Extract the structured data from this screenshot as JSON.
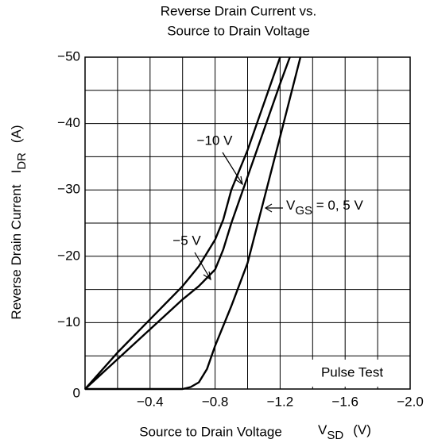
{
  "chart_data": {
    "type": "line",
    "title": [
      "Reverse Drain Current vs.",
      "Source to Drain Voltage"
    ],
    "xlabel": [
      "Source to Drain Voltage",
      "V",
      "SD",
      "(V)"
    ],
    "ylabel": [
      "Reverse Drain Current",
      "I",
      "DR",
      "(A)"
    ],
    "xlim": [
      0,
      -2.0
    ],
    "ylim": [
      0,
      -50
    ],
    "xticks": [
      {
        "value": -0.4,
        "label": "−0.4"
      },
      {
        "value": -0.8,
        "label": "−0.8"
      },
      {
        "value": -1.2,
        "label": "−1.2"
      },
      {
        "value": -1.6,
        "label": "−1.6"
      },
      {
        "value": -2.0,
        "label": "−2.0"
      }
    ],
    "xminor": [
      -0.2,
      -0.6,
      -1.0,
      -1.4,
      -1.8
    ],
    "yticks": [
      0,
      {
        "value": -10,
        "label": "−10"
      },
      {
        "value": -20,
        "label": "−20"
      },
      {
        "value": -30,
        "label": "−30"
      },
      {
        "value": -40,
        "label": "−40"
      },
      {
        "value": -50,
        "label": "−50"
      }
    ],
    "yminor": [
      -5,
      -15,
      -25,
      -35,
      -45
    ],
    "grid": true,
    "series": [
      {
        "name": "−10 V",
        "color": "#000000",
        "x": [
          0,
          -0.2,
          -0.4,
          -0.6,
          -0.7,
          -0.8,
          -0.85,
          -0.9,
          -1.0,
          -1.1,
          -1.2
        ],
        "values": [
          0,
          -5.5,
          -10.5,
          -15.5,
          -18.5,
          -22.5,
          -25.5,
          -30,
          -36,
          -43,
          -50
        ]
      },
      {
        "name": "−5 V",
        "color": "#000000",
        "x": [
          0,
          -0.2,
          -0.4,
          -0.6,
          -0.7,
          -0.8,
          -0.85,
          -0.9,
          -1.0,
          -1.1,
          -1.2,
          -1.26
        ],
        "values": [
          0,
          -4.5,
          -9,
          -13.5,
          -15.5,
          -18,
          -21,
          -25,
          -32,
          -39,
          -46,
          -50
        ]
      },
      {
        "name": [
          "V",
          "GS",
          " = 0, 5 V"
        ],
        "color": "#000000",
        "x": [
          0,
          -0.6,
          -0.65,
          -0.7,
          -0.75,
          -0.8,
          -0.9,
          -1.0,
          -1.1,
          -1.2,
          -1.325
        ],
        "values": [
          0,
          0,
          -0.3,
          -1,
          -3,
          -6.5,
          -12.5,
          -19,
          -28.5,
          -38,
          -50
        ]
      }
    ],
    "annotation": "Pulse Test"
  }
}
